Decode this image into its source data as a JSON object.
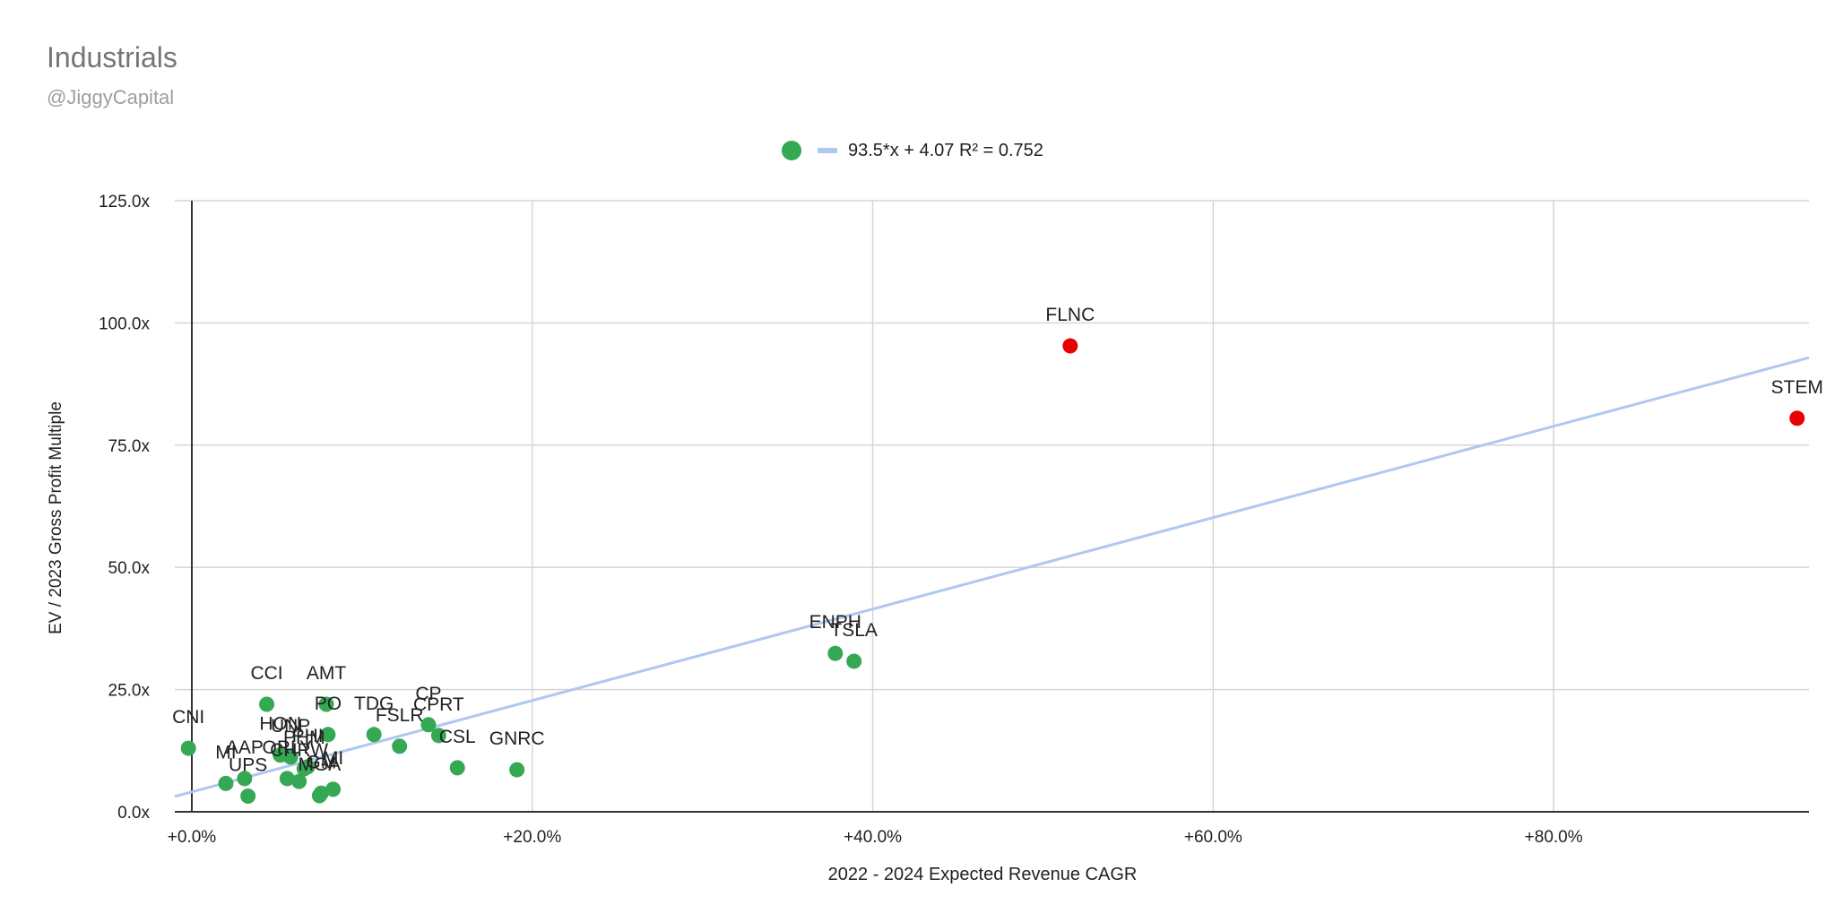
{
  "chart_data": {
    "type": "scatter",
    "title": "Industrials",
    "subtitle": "@JiggyCapital",
    "xlabel": "2022 - 2024 Expected Revenue CAGR",
    "ylabel": "EV / 2023 Gross Profit Multiple",
    "xlim": [
      -0.01,
      0.95
    ],
    "ylim": [
      0,
      125
    ],
    "x_ticks": [
      0.0,
      0.2,
      0.4,
      0.6,
      0.8
    ],
    "x_tick_labels": [
      "+0.0%",
      "+20.0%",
      "+40.0%",
      "+60.0%",
      "+80.0%"
    ],
    "y_ticks": [
      0,
      25,
      50,
      75,
      100,
      125
    ],
    "y_tick_labels": [
      "0.0x",
      "25.0x",
      "50.0x",
      "75.0x",
      "100.0x",
      "125.0x"
    ],
    "legend": {
      "trendline_label": "93.5*x + 4.07 R² = 0.752",
      "position": "top"
    },
    "trendline": {
      "slope": 93.5,
      "intercept": 4.07,
      "r2": 0.752,
      "color": "#aec8ef"
    },
    "colors": {
      "normal": "#34a853",
      "outlier": "#ea0000"
    },
    "points": [
      {
        "label": "CNI",
        "x": -0.002,
        "y": 13.0,
        "outlier": false
      },
      {
        "label": "MI",
        "x": 0.02,
        "y": 5.8,
        "outlier": false
      },
      {
        "label": "AAP",
        "x": 0.031,
        "y": 6.8,
        "outlier": false
      },
      {
        "label": "UPS",
        "x": 0.033,
        "y": 3.2,
        "outlier": false
      },
      {
        "label": "CCI",
        "x": 0.044,
        "y": 22.0,
        "outlier": false
      },
      {
        "label": "HON",
        "x": 0.052,
        "y": 11.6,
        "outlier": false
      },
      {
        "label": "ORLY",
        "x": 0.056,
        "y": 6.8,
        "outlier": false
      },
      {
        "label": "UNP",
        "x": 0.058,
        "y": 11.2,
        "outlier": false
      },
      {
        "label": "CHRW",
        "x": 0.063,
        "y": 6.2,
        "outlier": false
      },
      {
        "label": "PHM",
        "x": 0.066,
        "y": 8.8,
        "outlier": false
      },
      {
        "label": "PHI",
        "x": 0.068,
        "y": 9.2,
        "outlier": false
      },
      {
        "label": "MGA",
        "x": 0.075,
        "y": 3.3,
        "outlier": false
      },
      {
        "label": "GM",
        "x": 0.076,
        "y": 3.8,
        "outlier": false
      },
      {
        "label": "AMT",
        "x": 0.079,
        "y": 22.0,
        "outlier": false
      },
      {
        "label": "PO",
        "x": 0.08,
        "y": 15.8,
        "outlier": false
      },
      {
        "label": "MI",
        "x": 0.083,
        "y": 4.6,
        "outlier": false
      },
      {
        "label": "TDG",
        "x": 0.107,
        "y": 15.8,
        "outlier": false
      },
      {
        "label": "FSLR",
        "x": 0.122,
        "y": 13.4,
        "outlier": false
      },
      {
        "label": "CP",
        "x": 0.139,
        "y": 17.8,
        "outlier": false
      },
      {
        "label": "CPRT",
        "x": 0.145,
        "y": 15.6,
        "outlier": false
      },
      {
        "label": "CSL",
        "x": 0.156,
        "y": 9.0,
        "outlier": false
      },
      {
        "label": "GNRC",
        "x": 0.191,
        "y": 8.6,
        "outlier": false
      },
      {
        "label": "ENPH",
        "x": 0.378,
        "y": 32.4,
        "outlier": false
      },
      {
        "label": "TSLA",
        "x": 0.389,
        "y": 30.8,
        "outlier": false
      },
      {
        "label": "FLNC",
        "x": 0.516,
        "y": 95.3,
        "outlier": true
      },
      {
        "label": "STEM",
        "x": 0.943,
        "y": 80.5,
        "outlier": true
      }
    ]
  }
}
